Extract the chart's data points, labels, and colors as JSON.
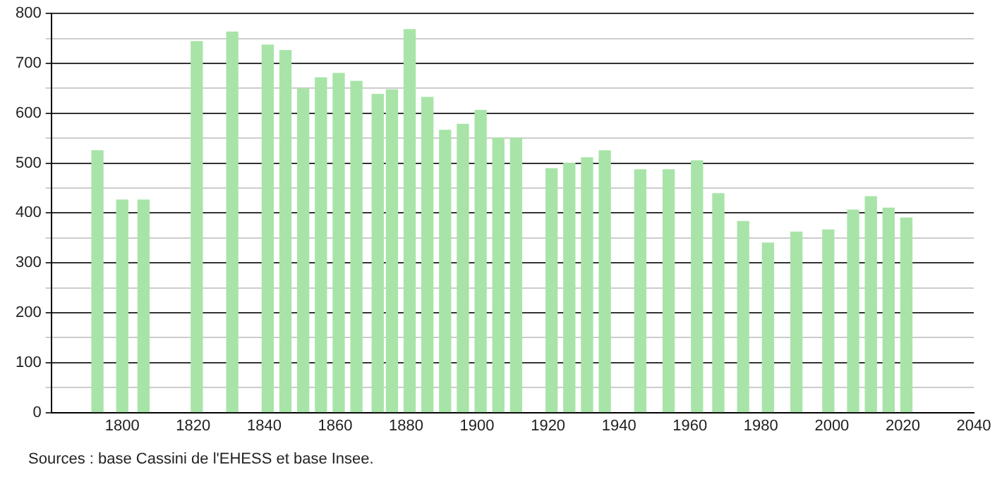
{
  "chart_data": {
    "type": "bar",
    "x": [
      1793,
      1800,
      1806,
      1821,
      1831,
      1841,
      1846,
      1851,
      1856,
      1861,
      1866,
      1872,
      1876,
      1881,
      1886,
      1891,
      1896,
      1901,
      1906,
      1911,
      1921,
      1926,
      1931,
      1936,
      1946,
      1954,
      1962,
      1968,
      1975,
      1982,
      1990,
      1999,
      2006,
      2011,
      2016,
      2021
    ],
    "values": [
      525,
      426,
      426,
      744,
      763,
      737,
      726,
      649,
      671,
      680,
      664,
      638,
      647,
      768,
      632,
      566,
      578,
      606,
      550,
      550,
      489,
      500,
      511,
      525,
      487,
      487,
      505,
      439,
      383,
      340,
      362,
      366,
      406,
      433,
      410,
      390
    ],
    "color": "#a8e4a8",
    "xlim": [
      1780,
      2040
    ],
    "xticks": [
      1800,
      1820,
      1840,
      1860,
      1880,
      1900,
      1920,
      1940,
      1960,
      1980,
      2000,
      2020,
      2040
    ],
    "ylim": [
      0,
      800
    ],
    "yticks": [
      0,
      {
        "value": 50,
        "label": null
      },
      100,
      {
        "value": 150,
        "label": null
      },
      200,
      {
        "value": 250,
        "label": null
      },
      300,
      {
        "value": 350,
        "label": null
      },
      400,
      {
        "value": 450,
        "label": null
      },
      500,
      {
        "value": 550,
        "label": null
      },
      600,
      {
        "value": 650,
        "label": null
      },
      700,
      {
        "value": 750,
        "label": null
      },
      800
    ],
    "grid": "y",
    "annotations": [
      "Sources : base Cassini de l'EHESS et base Insee."
    ]
  }
}
